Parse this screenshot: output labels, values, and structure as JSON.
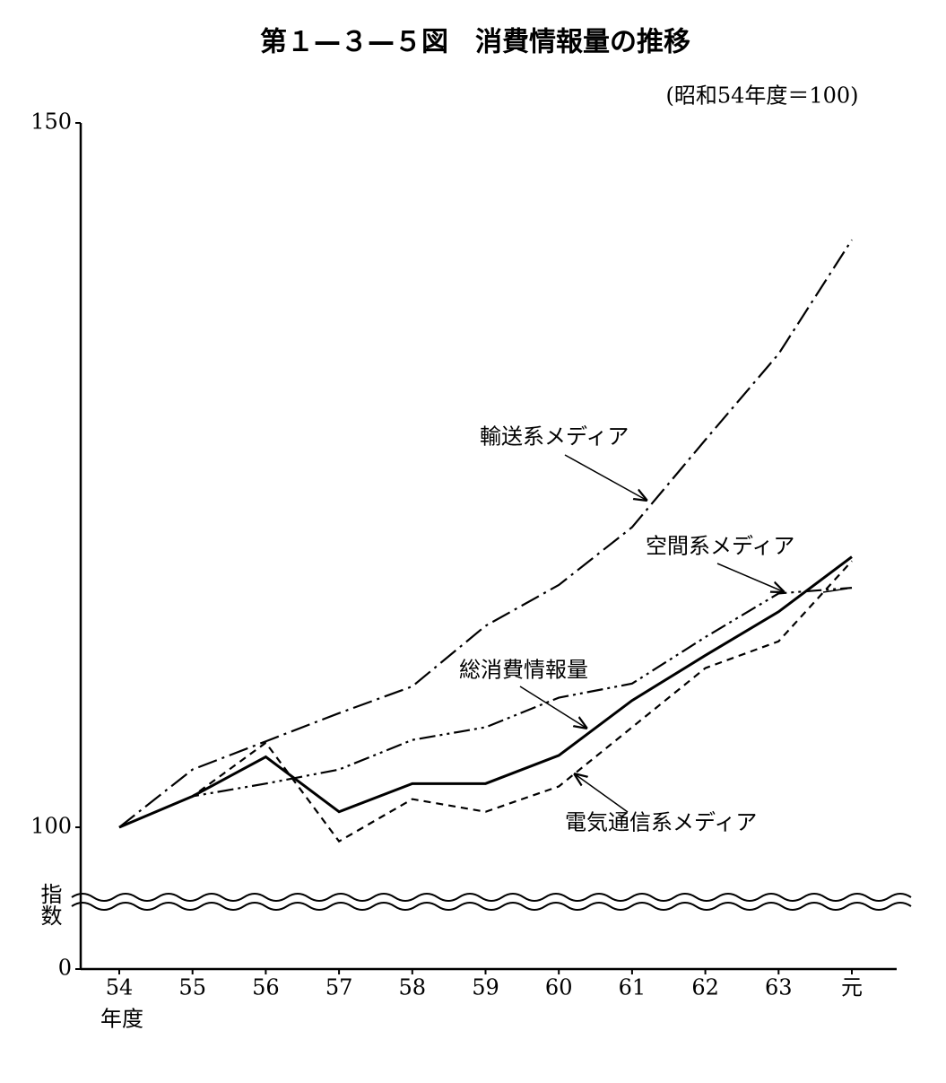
{
  "chart_data": {
    "type": "line",
    "title": "第１—３—５図　消費情報量の推移",
    "subtitle": "(昭和54年度＝100)",
    "y_label": "指数",
    "x_label": "年度",
    "categories": [
      "54",
      "55",
      "56",
      "57",
      "58",
      "59",
      "60",
      "61",
      "62",
      "63",
      "元"
    ],
    "ylim": [
      0,
      150
    ],
    "yticks": [
      0,
      100,
      150
    ],
    "axis_break": true,
    "series": [
      {
        "name": "輸送系メディア",
        "color": "#000000",
        "style": "dashdot",
        "values": [
          100,
          104.1,
          106.1,
          108.1,
          110.0,
          114.3,
          117.2,
          121.3,
          127.5,
          133.6,
          141.7
        ]
      },
      {
        "name": "空間系メディア",
        "color": "#000000",
        "style": "dashdotdot",
        "values": [
          100,
          102.2,
          103.1,
          104.1,
          106.2,
          107.1,
          109.2,
          110.2,
          113.5,
          116.6,
          117.0
        ]
      },
      {
        "name": "総消費情報量",
        "color": "#000000",
        "style": "solid",
        "values": [
          100,
          102.2,
          105.0,
          101.1,
          103.1,
          103.1,
          105.1,
          109.0,
          112.2,
          115.3,
          119.2
        ]
      },
      {
        "name": "電気通信系メディア",
        "color": "#000000",
        "style": "dashed",
        "values": [
          100,
          102.2,
          106.0,
          99.0,
          102.0,
          101.1,
          102.9,
          107.1,
          111.3,
          113.2,
          118.9
        ]
      }
    ]
  }
}
